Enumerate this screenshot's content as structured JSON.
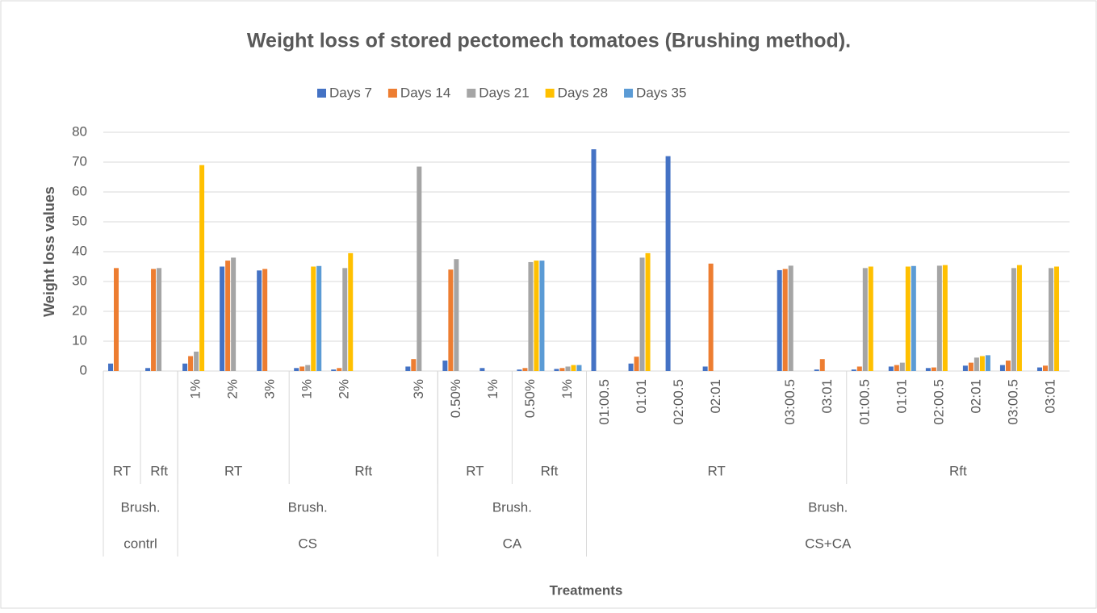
{
  "chart_data": {
    "type": "bar",
    "title": "Weight loss of stored pectomech tomatoes (Brushing method).",
    "y_label": "Weight loss values",
    "x_label": "Treatments",
    "ylim": [
      0,
      80
    ],
    "yticks": [
      0,
      10,
      20,
      30,
      40,
      50,
      60,
      70,
      80
    ],
    "grid": true,
    "legend": "top",
    "category_tree": [
      {
        "label": "contrl",
        "children": [
          {
            "label": "Brush.",
            "children": [
              {
                "label": "RT",
                "children": [
                  null
                ]
              },
              {
                "label": "Rft",
                "children": [
                  null
                ]
              }
            ]
          }
        ]
      },
      {
        "label": "CS",
        "children": [
          {
            "label": "Brush.",
            "children": [
              {
                "label": "RT",
                "children": [
                  "1%",
                  "2%",
                  "3%"
                ]
              },
              {
                "label": "Rft",
                "children": [
                  "1%",
                  "2%",
                  null,
                  "3%"
                ]
              }
            ]
          }
        ]
      },
      {
        "label": "CA",
        "children": [
          {
            "label": "Brush.",
            "children": [
              {
                "label": "RT",
                "children": [
                  "0.50%",
                  "1%"
                ]
              },
              {
                "label": "Rft",
                "children": [
                  "0.50%",
                  "1%"
                ]
              }
            ]
          }
        ]
      },
      {
        "label": "CS+CA",
        "children": [
          {
            "label": "Brush.",
            "children": [
              {
                "label": "RT",
                "children": [
                  "01:00.5",
                  "01:01",
                  "02:00.5",
                  "02:01",
                  null,
                  "03:00.5",
                  "03:01"
                ]
              },
              {
                "label": "Rft",
                "children": [
                  "01:00.5",
                  "01:01",
                  "02:00.5",
                  "02:01",
                  "03:00.5",
                  "03:01"
                ]
              }
            ]
          }
        ]
      }
    ],
    "series": [
      {
        "name": "Days 7",
        "color": "#4472c4",
        "values": [
          2.5,
          1,
          2.5,
          35,
          33.7,
          1,
          0.5,
          null,
          1.5,
          3.5,
          1,
          0.5,
          0.7,
          74.3,
          2.5,
          72,
          1.5,
          null,
          33.8,
          0.5,
          0.5,
          1.5,
          1,
          1.8,
          2,
          1.2
        ]
      },
      {
        "name": "Days 14",
        "color": "#ed7d31",
        "values": [
          34.5,
          34.2,
          5,
          37,
          34.2,
          1.5,
          1,
          null,
          4,
          34,
          null,
          1,
          1,
          null,
          4.8,
          null,
          36,
          null,
          34.2,
          4,
          1.5,
          2,
          1.2,
          2.8,
          3.5,
          1.8
        ]
      },
      {
        "name": "Days 21",
        "color": "#a5a5a5",
        "values": [
          null,
          34.5,
          6.5,
          38,
          null,
          2,
          34.5,
          null,
          68.5,
          37.5,
          null,
          36.5,
          1.5,
          null,
          38,
          null,
          null,
          null,
          35.3,
          null,
          34.5,
          2.8,
          35.3,
          4.5,
          34.5,
          34.5
        ]
      },
      {
        "name": "Days 28",
        "color": "#ffc000",
        "values": [
          null,
          null,
          69,
          null,
          null,
          35,
          39.5,
          null,
          null,
          null,
          null,
          37,
          2,
          null,
          39.5,
          null,
          null,
          null,
          null,
          null,
          35,
          35,
          35.5,
          5,
          35.5,
          35
        ]
      },
      {
        "name": "Days 35",
        "color": "#5b9bd5",
        "values": [
          null,
          null,
          null,
          null,
          null,
          35.2,
          null,
          null,
          null,
          null,
          null,
          37,
          2,
          null,
          null,
          null,
          null,
          null,
          null,
          null,
          null,
          35.2,
          null,
          5.3,
          null,
          null
        ]
      }
    ]
  }
}
